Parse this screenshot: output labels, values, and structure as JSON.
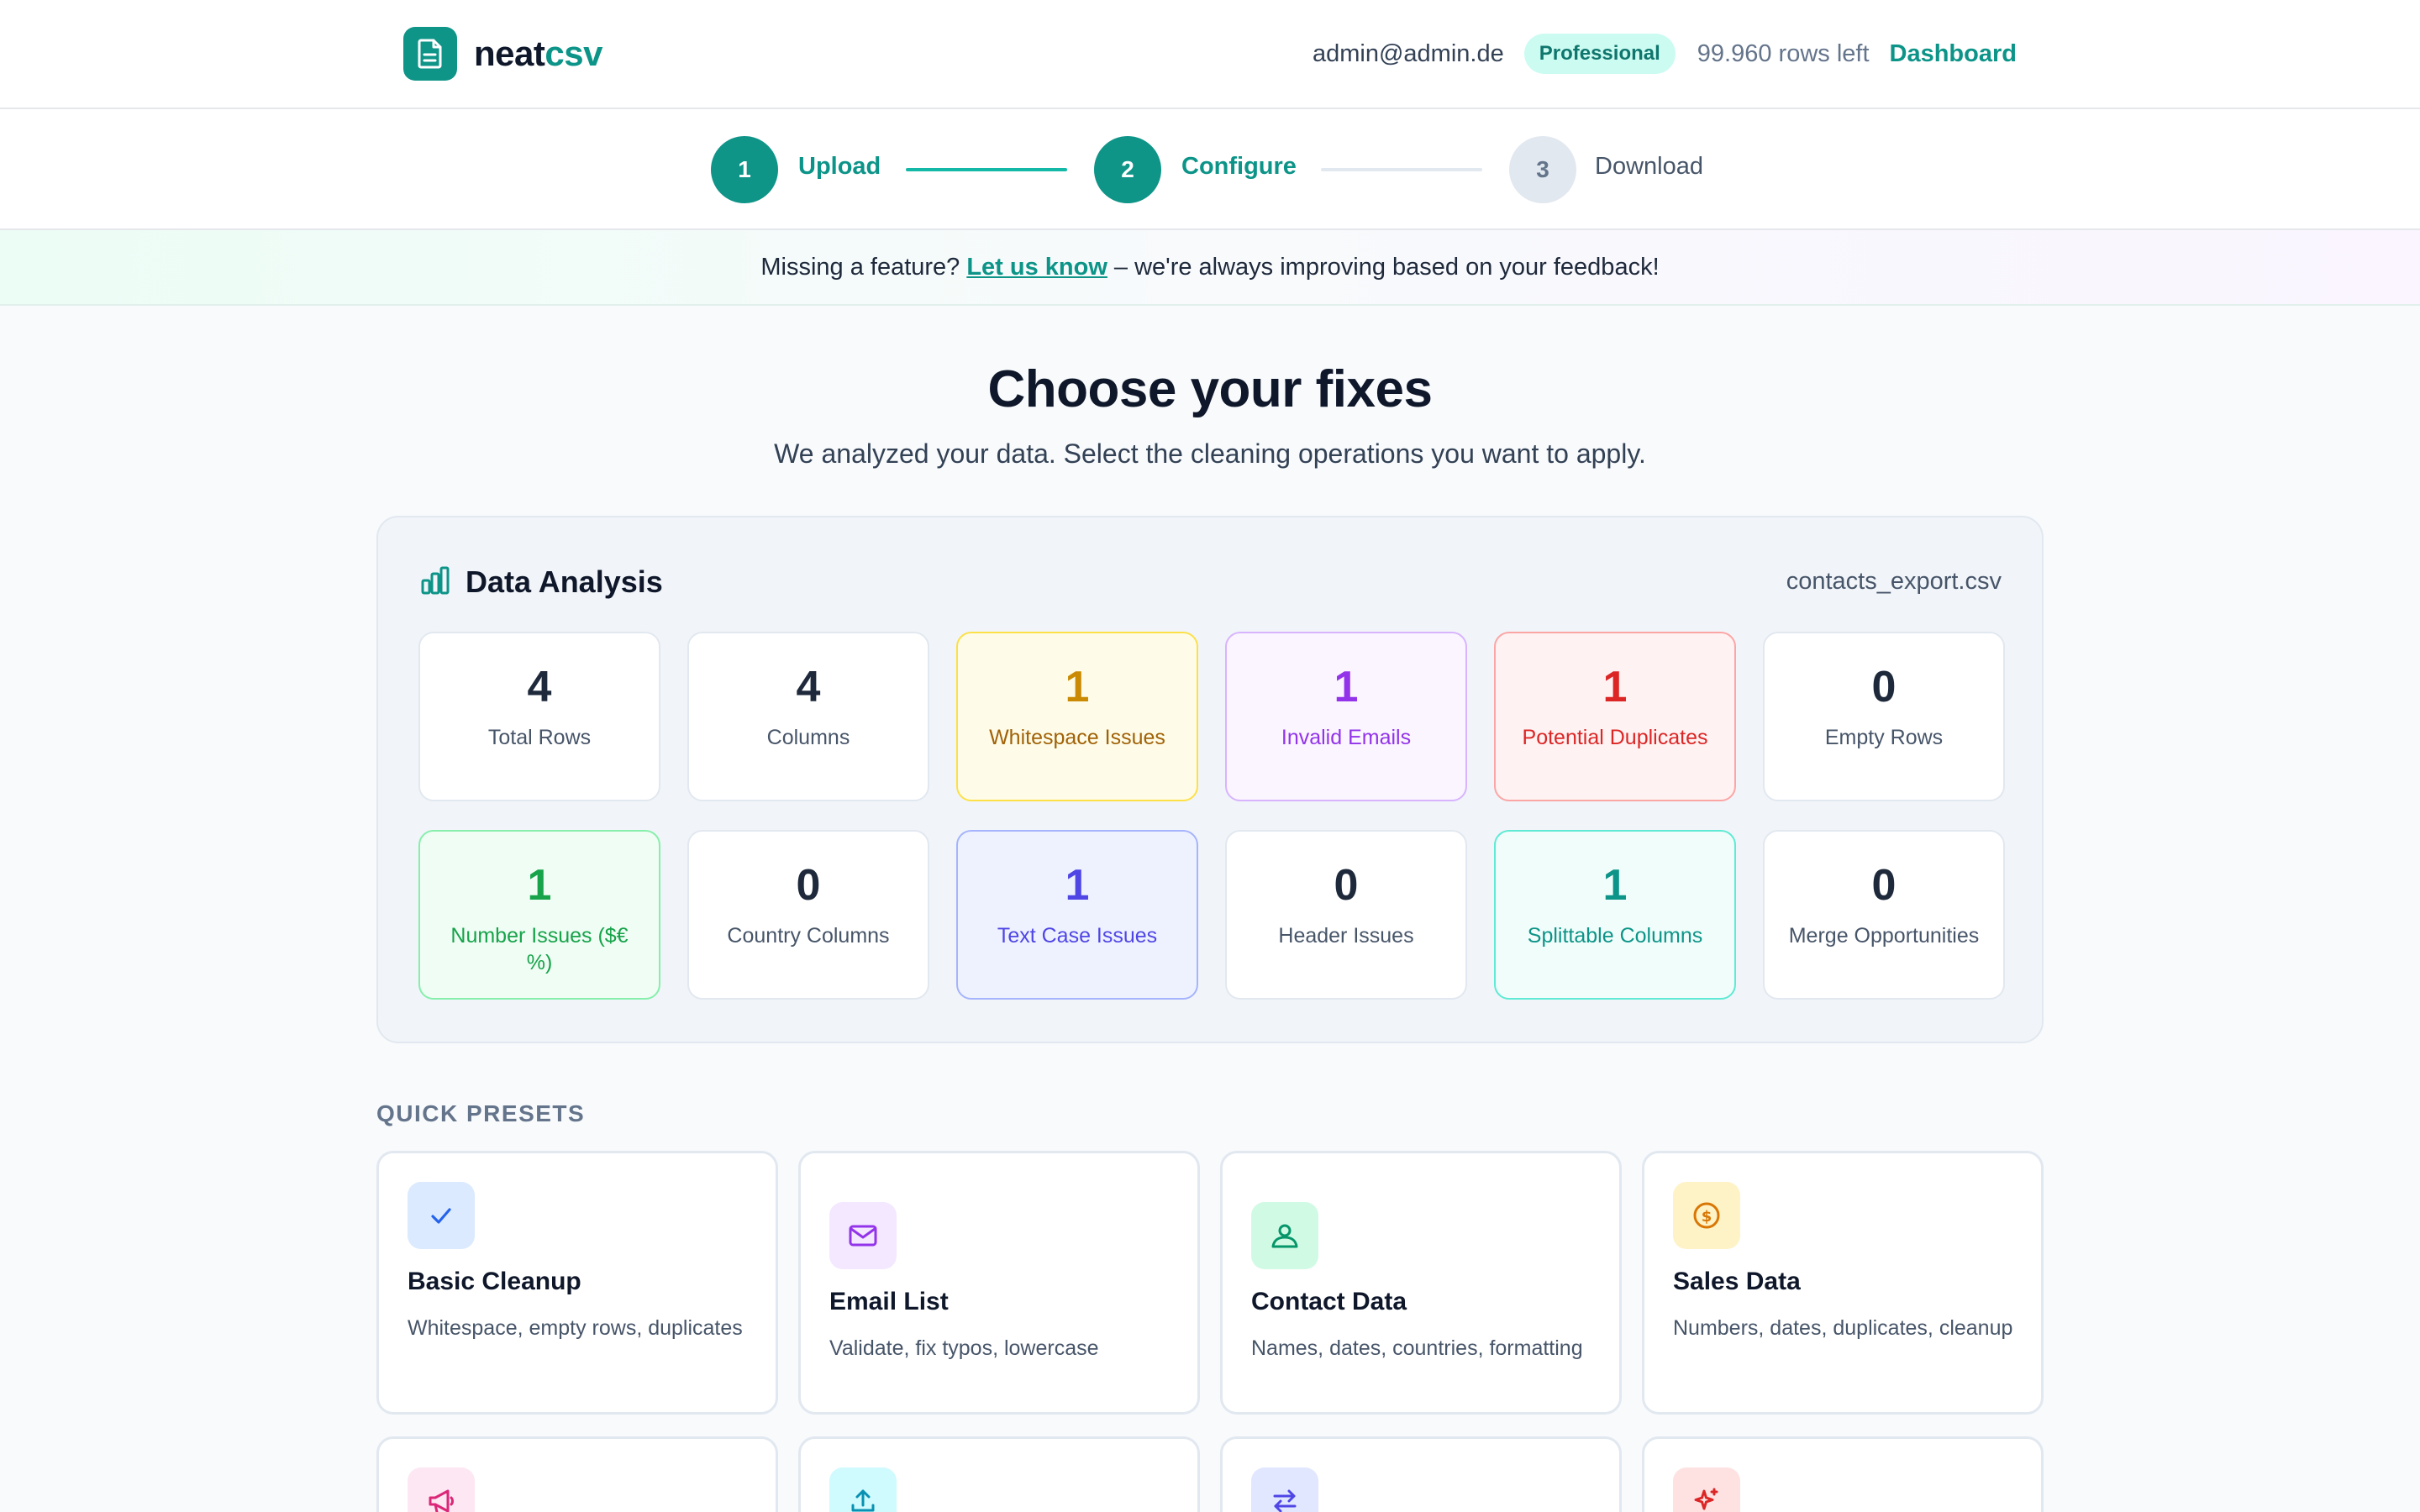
{
  "header": {
    "logo_part1": "neat",
    "logo_part2": "csv",
    "user_email": "admin@admin.de",
    "plan": "Professional",
    "rows_left": "99.960 rows left",
    "dashboard_link": "Dashboard"
  },
  "stepper": {
    "steps": [
      {
        "number": "1",
        "label": "Upload",
        "state": "complete"
      },
      {
        "number": "2",
        "label": "Configure",
        "state": "current"
      },
      {
        "number": "3",
        "label": "Download",
        "state": "upcoming"
      }
    ]
  },
  "banner": {
    "prefix": "Missing a feature?",
    "link": "Let us know",
    "suffix": "– we're always improving based on your feedback!"
  },
  "main": {
    "title": "Choose your fixes",
    "subtitle": "We analyzed your data. Select the cleaning operations you want to apply."
  },
  "analysis": {
    "title": "Data Analysis",
    "file_name": "contacts_export.csv",
    "stats": [
      {
        "value": "4",
        "label": "Total Rows",
        "variant": "neutral"
      },
      {
        "value": "4",
        "label": "Columns",
        "variant": "neutral"
      },
      {
        "value": "1",
        "label": "Whitespace Issues",
        "variant": "yellow"
      },
      {
        "value": "1",
        "label": "Invalid Emails",
        "variant": "purple"
      },
      {
        "value": "1",
        "label": "Potential Duplicates",
        "variant": "red"
      },
      {
        "value": "0",
        "label": "Empty Rows",
        "variant": "neutral"
      },
      {
        "value": "1",
        "label": "Number Issues ($€ %)",
        "variant": "green"
      },
      {
        "value": "0",
        "label": "Country Columns",
        "variant": "neutral"
      },
      {
        "value": "1",
        "label": "Text Case Issues",
        "variant": "indigo"
      },
      {
        "value": "0",
        "label": "Header Issues",
        "variant": "neutral"
      },
      {
        "value": "1",
        "label": "Splittable Columns",
        "variant": "teal"
      },
      {
        "value": "0",
        "label": "Merge Opportunities",
        "variant": "neutral"
      }
    ]
  },
  "presets": {
    "heading": "QUICK PRESETS",
    "items": [
      {
        "title": "Basic Cleanup",
        "description": "Whitespace, empty rows, duplicates",
        "icon": "check-icon"
      },
      {
        "title": "Email List",
        "description": "Validate, fix typos, lowercase",
        "icon": "mail-icon"
      },
      {
        "title": "Contact Data",
        "description": "Names, dates, countries, formatting",
        "icon": "user-icon"
      },
      {
        "title": "Sales Data",
        "description": "Numbers, dates, duplicates, cleanup",
        "icon": "dollar-icon"
      },
      {
        "title": "",
        "description": "",
        "icon": "megaphone-icon"
      },
      {
        "title": "",
        "description": "",
        "icon": "upload-icon"
      },
      {
        "title": "",
        "description": "",
        "icon": "transfer-icon"
      },
      {
        "title": "",
        "description": "",
        "icon": "sparkles-icon"
      }
    ]
  },
  "colors": {
    "brand": "#0d9488",
    "brand_dark": "#0f9488",
    "page_bg": "#f8fafc"
  }
}
